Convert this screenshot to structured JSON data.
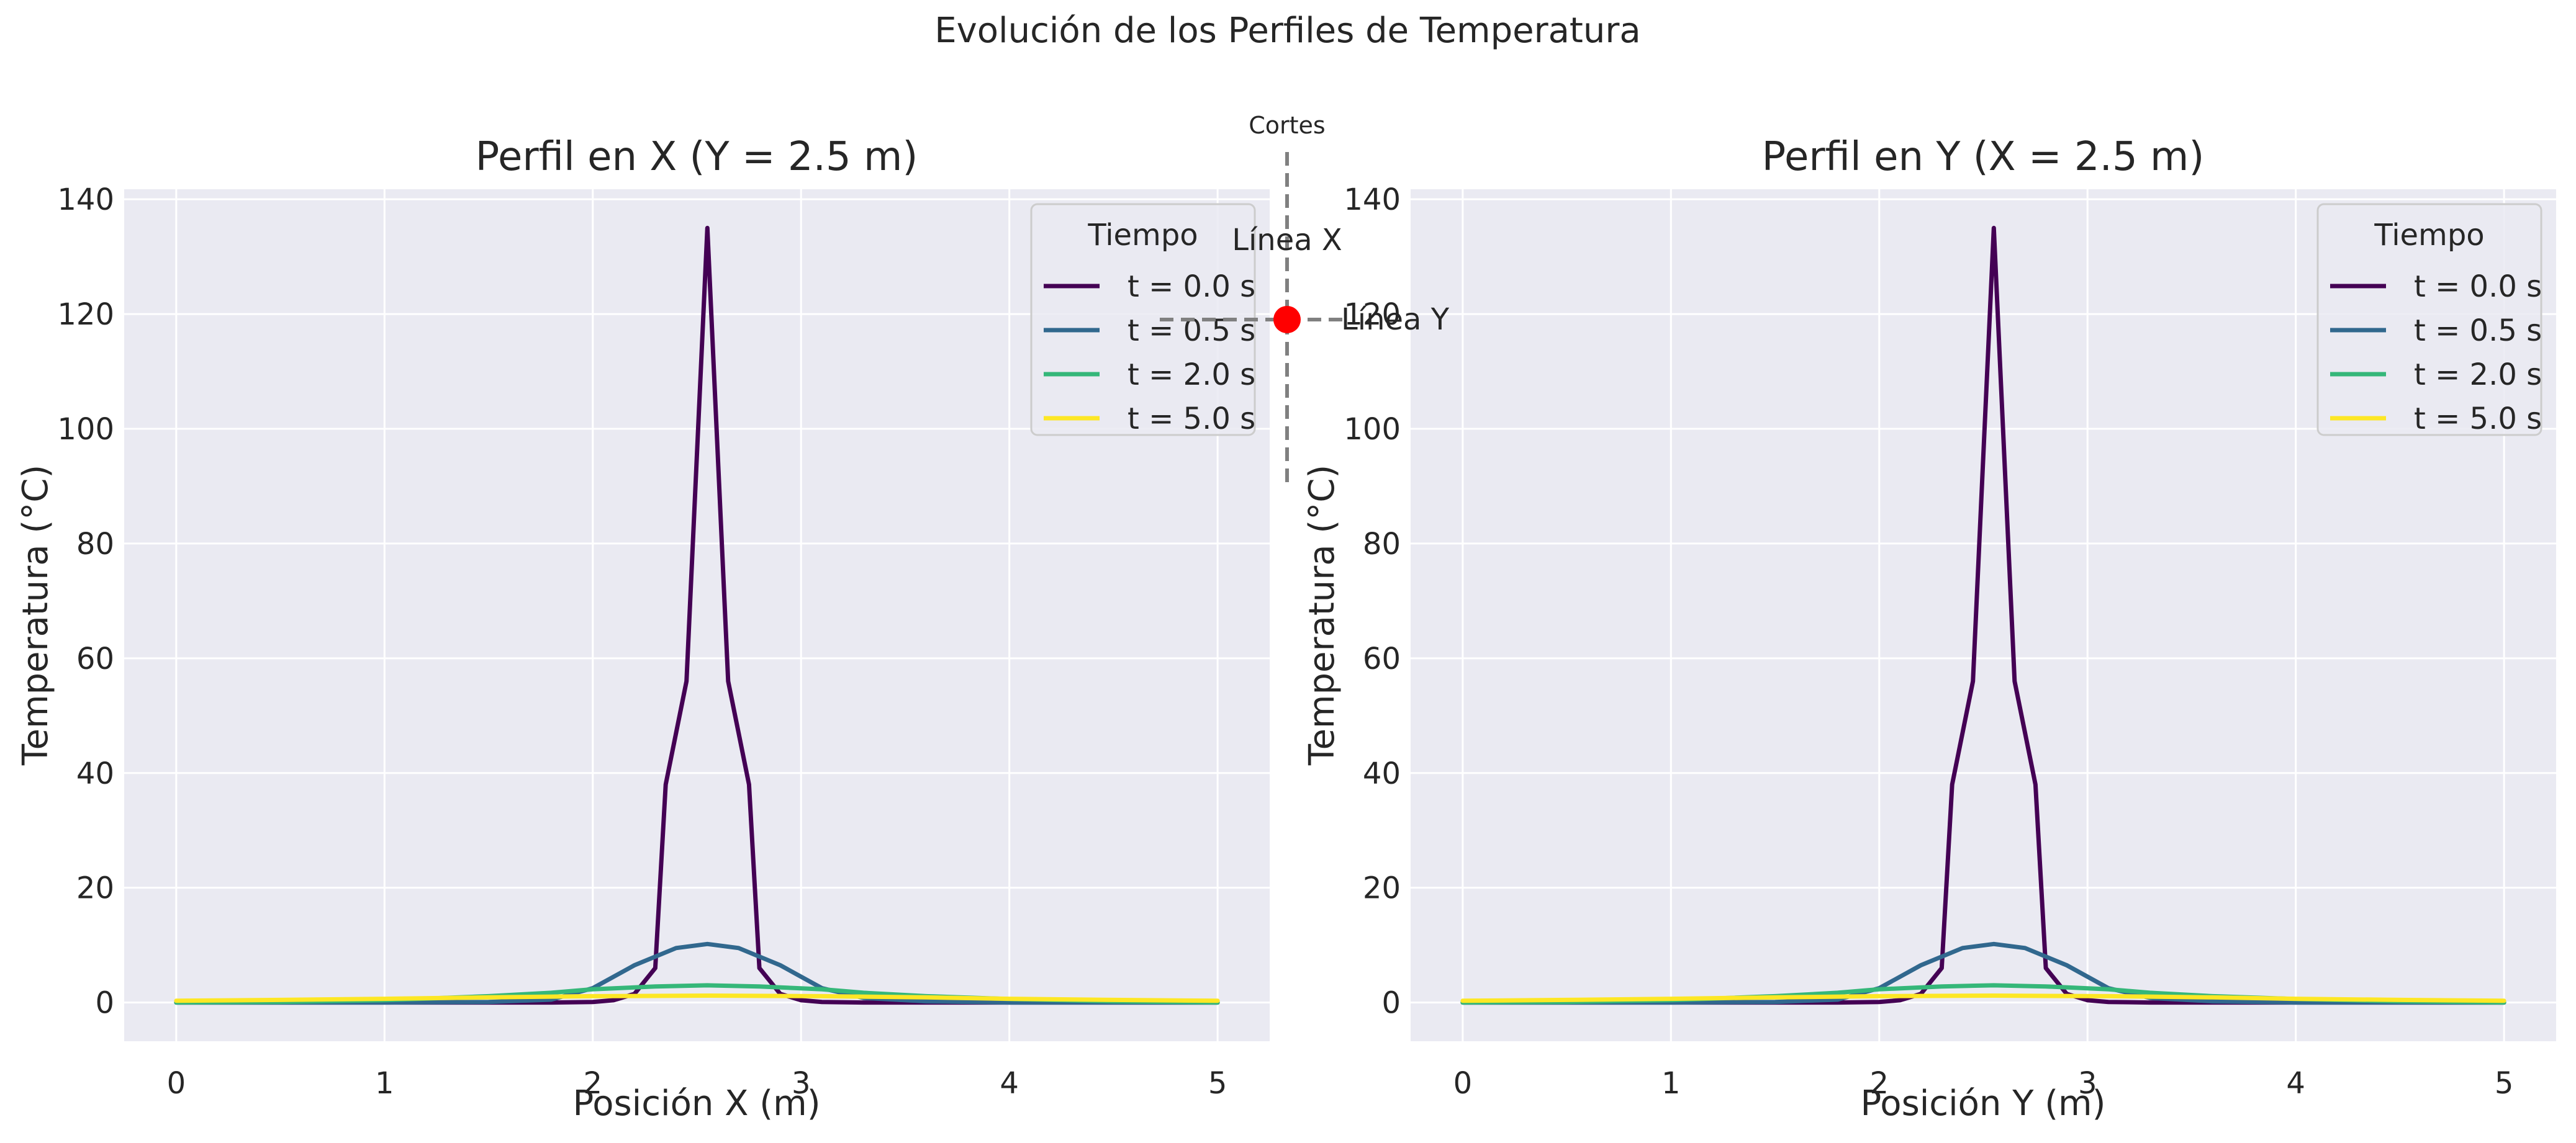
{
  "suptitle": "Evolución de los Perfiles de Temperatura",
  "legend_title": "Tiempo",
  "series_colors": [
    "#440154",
    "#31688e",
    "#35b779",
    "#fde725"
  ],
  "inset": {
    "title": "Cortes",
    "label_x": "Línea X",
    "label_y": "Línea Y",
    "point_color": "#ff0000",
    "line_color": "#808080"
  },
  "chart_data": [
    {
      "type": "line",
      "title": "Perfil en X (Y = 2.5 m)",
      "xlabel": "Posición X (m)",
      "ylabel": "Temperatura (°C)",
      "xlim": [
        -0.25,
        5.25
      ],
      "ylim": [
        -6.75,
        141.75
      ],
      "xticks": [
        0,
        1,
        2,
        3,
        4,
        5
      ],
      "yticks": [
        0,
        20,
        40,
        60,
        80,
        100,
        120,
        140
      ],
      "grid": true,
      "legend_position": "top-right",
      "series": [
        {
          "name": "t = 0.0 s",
          "x": [
            0,
            1.0,
            1.5,
            1.8,
            2.0,
            2.1,
            2.2,
            2.3,
            2.35,
            2.45,
            2.55,
            2.65,
            2.75,
            2.8,
            2.9,
            3.0,
            3.1,
            3.3,
            4.0,
            5.0
          ],
          "y": [
            0,
            0,
            0,
            0,
            0.1,
            0.4,
            1.5,
            6,
            38,
            56,
            135,
            56,
            38,
            6,
            1.5,
            0.4,
            0.1,
            0,
            0,
            0
          ]
        },
        {
          "name": "t = 0.5 s",
          "x": [
            0,
            1.0,
            1.5,
            1.8,
            2.0,
            2.2,
            2.4,
            2.55,
            2.7,
            2.9,
            3.1,
            3.3,
            3.6,
            4.0,
            5.0
          ],
          "y": [
            0,
            0,
            0.1,
            0.5,
            2.5,
            6.5,
            9.5,
            10.2,
            9.5,
            6.5,
            2.5,
            0.8,
            0.2,
            0,
            0
          ]
        },
        {
          "name": "t = 2.0 s",
          "x": [
            0,
            0.5,
            1.0,
            1.5,
            1.8,
            2.0,
            2.3,
            2.55,
            2.8,
            3.1,
            3.3,
            3.6,
            4.0,
            4.5,
            5.0
          ],
          "y": [
            0,
            0.1,
            0.4,
            1.1,
            1.7,
            2.3,
            2.8,
            3.0,
            2.8,
            2.3,
            1.7,
            1.1,
            0.6,
            0.2,
            0
          ]
        },
        {
          "name": "t = 5.0 s",
          "x": [
            0,
            0.5,
            1.0,
            1.5,
            2.0,
            2.55,
            3.1,
            3.6,
            4.0,
            4.5,
            5.0
          ],
          "y": [
            0.3,
            0.45,
            0.65,
            0.9,
            1.1,
            1.2,
            1.1,
            0.9,
            0.65,
            0.45,
            0.3
          ]
        }
      ]
    },
    {
      "type": "line",
      "title": "Perfil en Y (X = 2.5 m)",
      "xlabel": "Posición Y (m)",
      "ylabel": "Temperatura (°C)",
      "xlim": [
        -0.25,
        5.25
      ],
      "ylim": [
        -6.75,
        141.75
      ],
      "xticks": [
        0,
        1,
        2,
        3,
        4,
        5
      ],
      "yticks": [
        0,
        20,
        40,
        60,
        80,
        100,
        120,
        140
      ],
      "grid": true,
      "legend_position": "top-right",
      "series": [
        {
          "name": "t = 0.0 s",
          "x": [
            0,
            1.0,
            1.5,
            1.8,
            2.0,
            2.1,
            2.2,
            2.3,
            2.35,
            2.45,
            2.55,
            2.65,
            2.75,
            2.8,
            2.9,
            3.0,
            3.1,
            3.3,
            4.0,
            5.0
          ],
          "y": [
            0,
            0,
            0,
            0,
            0.1,
            0.4,
            1.5,
            6,
            38,
            56,
            135,
            56,
            38,
            6,
            1.5,
            0.4,
            0.1,
            0,
            0,
            0
          ]
        },
        {
          "name": "t = 0.5 s",
          "x": [
            0,
            1.0,
            1.5,
            1.8,
            2.0,
            2.2,
            2.4,
            2.55,
            2.7,
            2.9,
            3.1,
            3.3,
            3.6,
            4.0,
            5.0
          ],
          "y": [
            0,
            0,
            0.1,
            0.5,
            2.5,
            6.5,
            9.5,
            10.2,
            9.5,
            6.5,
            2.5,
            0.8,
            0.2,
            0,
            0
          ]
        },
        {
          "name": "t = 2.0 s",
          "x": [
            0,
            0.5,
            1.0,
            1.5,
            1.8,
            2.0,
            2.3,
            2.55,
            2.8,
            3.1,
            3.3,
            3.6,
            4.0,
            4.5,
            5.0
          ],
          "y": [
            0,
            0.1,
            0.4,
            1.1,
            1.7,
            2.3,
            2.8,
            3.0,
            2.8,
            2.3,
            1.7,
            1.1,
            0.6,
            0.2,
            0
          ]
        },
        {
          "name": "t = 5.0 s",
          "x": [
            0,
            0.5,
            1.0,
            1.5,
            2.0,
            2.55,
            3.1,
            3.6,
            4.0,
            4.5,
            5.0
          ],
          "y": [
            0.3,
            0.45,
            0.65,
            0.9,
            1.1,
            1.2,
            1.1,
            0.9,
            0.65,
            0.45,
            0.3
          ]
        }
      ]
    }
  ]
}
